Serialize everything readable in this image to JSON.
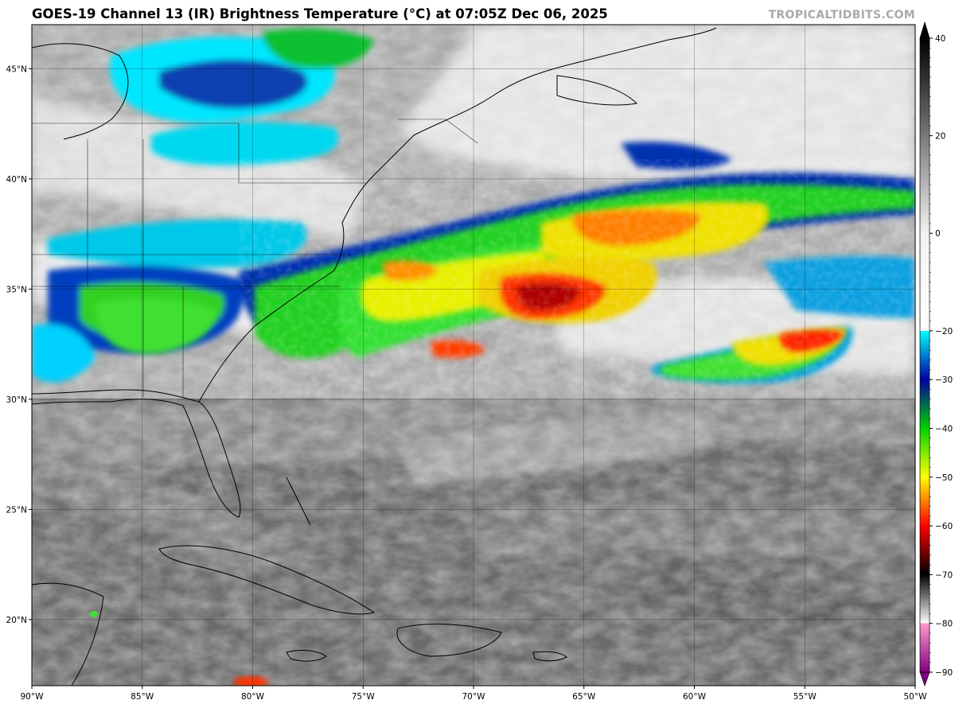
{
  "title": "GOES-19 Channel 13 (IR) Brightness Temperature (°C) at 07:05Z Dec 06, 2025",
  "watermark": "TROPICALTIDBITS.COM",
  "map": {
    "lon_range": [
      -90,
      -50
    ],
    "lat_range": [
      17,
      47
    ],
    "lat_ticks": [
      {
        "value": 20,
        "label": "20°N"
      },
      {
        "value": 25,
        "label": "25°N"
      },
      {
        "value": 30,
        "label": "30°N"
      },
      {
        "value": 35,
        "label": "35°N"
      },
      {
        "value": 40,
        "label": "40°N"
      },
      {
        "value": 45,
        "label": "45°N"
      }
    ],
    "lon_ticks": [
      {
        "value": -90,
        "label": "90°W"
      },
      {
        "value": -85,
        "label": "85°W"
      },
      {
        "value": -80,
        "label": "80°W"
      },
      {
        "value": -75,
        "label": "75°W"
      },
      {
        "value": -70,
        "label": "70°W"
      },
      {
        "value": -65,
        "label": "65°W"
      },
      {
        "value": -60,
        "label": "60°W"
      },
      {
        "value": -55,
        "label": "55°W"
      },
      {
        "value": -50,
        "label": "50°W"
      }
    ],
    "grid": true,
    "colors": {
      "ocean_clear": "#6b6b6b",
      "low_cloud": "#bdbdbd",
      "high_cloud": "#e8e8e8",
      "coast": "#000000"
    }
  },
  "colorbar": {
    "min": -90,
    "max": 40,
    "tick_labels": [
      {
        "value": 40,
        "label": "40"
      },
      {
        "value": 20,
        "label": "20"
      },
      {
        "value": 0,
        "label": "0"
      },
      {
        "value": -20,
        "label": "−20"
      },
      {
        "value": -30,
        "label": "−30"
      },
      {
        "value": -40,
        "label": "−40"
      },
      {
        "value": -50,
        "label": "−50"
      },
      {
        "value": -60,
        "label": "−60"
      },
      {
        "value": -70,
        "label": "−70"
      },
      {
        "value": -80,
        "label": "−80"
      },
      {
        "value": -90,
        "label": "−90"
      }
    ],
    "stops": [
      {
        "value": 40,
        "color": "#000000"
      },
      {
        "value": 0,
        "color": "#f2f2f2"
      },
      {
        "value": -20,
        "color": "#ffffff"
      },
      {
        "value": -20.01,
        "color": "#00ffff"
      },
      {
        "value": -30,
        "color": "#0000a0"
      },
      {
        "value": -40,
        "color": "#00d400"
      },
      {
        "value": -50,
        "color": "#ffff00"
      },
      {
        "value": -60,
        "color": "#ff0000"
      },
      {
        "value": -65,
        "color": "#800000"
      },
      {
        "value": -70,
        "color": "#000000"
      },
      {
        "value": -80,
        "color": "#ffffff"
      },
      {
        "value": -80.01,
        "color": "#ff99cc"
      },
      {
        "value": -90,
        "color": "#800080"
      }
    ]
  }
}
